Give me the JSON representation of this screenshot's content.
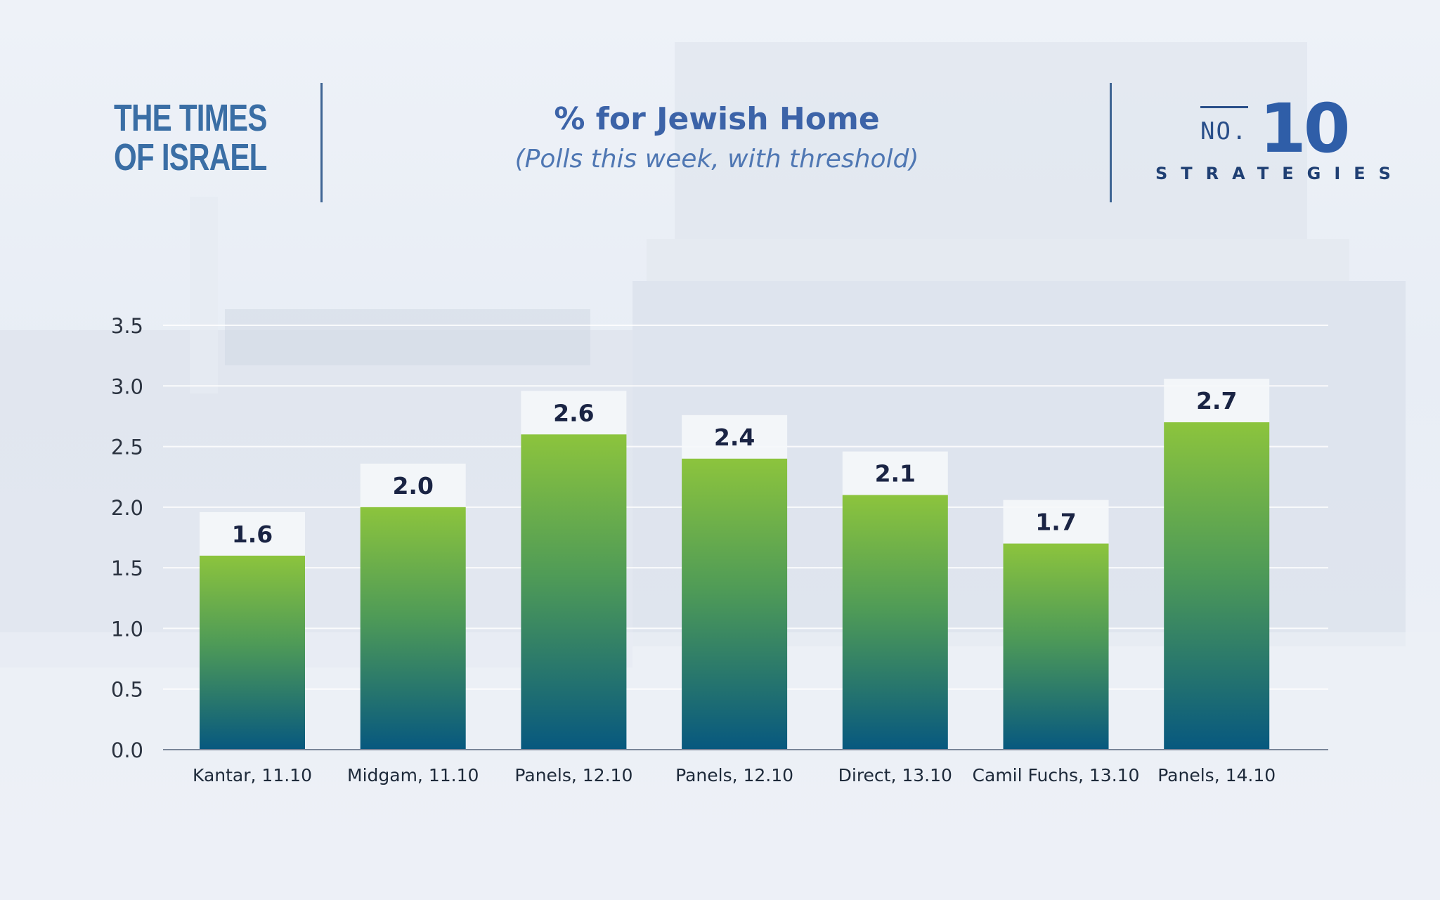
{
  "header": {
    "logo_left_line1": "THE TIMES",
    "logo_left_line2": "OF ISRAEL",
    "logo_right_no": "NO.",
    "logo_right_num": "10",
    "logo_right_word": "STRATEGIES"
  },
  "colors": {
    "bar_top": "#8cc43d",
    "bar_mid": "#4f9b57",
    "bar_bottom": "#07587f",
    "label_box": "#f5f7fa",
    "title": "#3c63a8"
  },
  "chart_data": {
    "type": "bar",
    "title": "% for Jewish Home",
    "subtitle": "(Polls this week, with threshold)",
    "categories": [
      "Kantar, 11.10",
      "Midgam, 11.10",
      "Panels, 12.10",
      "Panels, 12.10",
      "Direct, 13.10",
      "Camil Fuchs, 13.10",
      "Panels, 14.10"
    ],
    "values": [
      1.6,
      2.0,
      2.6,
      2.4,
      2.1,
      1.7,
      2.7
    ],
    "value_labels": [
      "1.6",
      "2.0",
      "2.6",
      "2.4",
      "2.1",
      "1.7",
      "2.7"
    ],
    "yticks": [
      "0.0",
      "0.5",
      "1.0",
      "1.5",
      "2.0",
      "2.5",
      "3.0",
      "3.5"
    ],
    "ylim": [
      0,
      3.5
    ],
    "xlabel": "",
    "ylabel": "",
    "grid": true
  }
}
